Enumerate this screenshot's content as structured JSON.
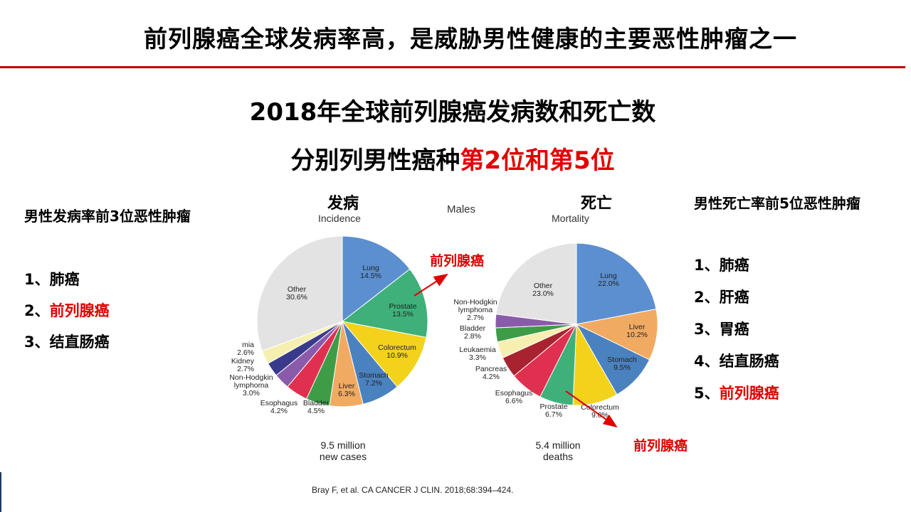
{
  "title": "前列腺癌全球发病率高，是威胁男性健康的主要恶性肿瘤之一",
  "headline": {
    "line1": "2018年全球前列腺癌发病数和死亡数",
    "line2_prefix": "分别列男性癌种",
    "line2_highlight": "第2位和第5位"
  },
  "left_panel": {
    "title": "男性发病率前3位恶性肿瘤",
    "items": [
      "1、肺癌",
      "2、",
      "3、结直肠癌"
    ],
    "highlight": "前列腺癌"
  },
  "right_panel": {
    "title": "男性死亡率前5位恶性肿瘤",
    "items": [
      "1、肺癌",
      "2、肝癌",
      "3、胃癌",
      "4、结直肠癌",
      "5、"
    ],
    "highlight": "前列腺癌"
  },
  "charts": {
    "center_label": "Males",
    "incidence": {
      "title_cn": "发病",
      "title_en": "Incidence",
      "caption_1": "9.5 million",
      "caption_2": "new cases"
    },
    "mortality": {
      "title_cn": "死亡",
      "title_en": "Mortality",
      "caption_1": "5.4 million",
      "caption_2": "deaths"
    }
  },
  "annotations": {
    "incidence_arrow_label": "前列腺癌",
    "mortality_arrow_label": "前列腺癌"
  },
  "citation": "Bray F, et al. CA CANCER J CLIN. 2018;68:394–424.",
  "colors": {
    "accent_red": "#c00000",
    "highlight_red": "#e00000"
  },
  "chart_data": [
    {
      "type": "pie",
      "title": "Incidence",
      "total_label": "9.5 million new cases",
      "slices": [
        {
          "label": "Lung",
          "value": 14.5,
          "color": "#5b8fcf"
        },
        {
          "label": "Prostate",
          "value": 13.5,
          "color": "#3fb07a"
        },
        {
          "label": "Colorectum",
          "value": 10.9,
          "color": "#f2d21b"
        },
        {
          "label": "Stomach",
          "value": 7.2,
          "color": "#4a82c0"
        },
        {
          "label": "Liver",
          "value": 6.3,
          "color": "#f1aa62"
        },
        {
          "label": "Bladder",
          "value": 4.5,
          "color": "#3e9c47"
        },
        {
          "label": "Esophagus",
          "value": 4.2,
          "color": "#e0304f"
        },
        {
          "label": "Non-Hodgkin lymphoma",
          "value": 3.0,
          "color": "#8b5bab"
        },
        {
          "label": "Kidney",
          "value": 2.7,
          "color": "#3a3a8c"
        },
        {
          "label": "mia",
          "value": 2.6,
          "color": "#f6efb0"
        },
        {
          "label": "Other",
          "value": 30.6,
          "color": "#e3e3e3"
        }
      ]
    },
    {
      "type": "pie",
      "title": "Mortality",
      "total_label": "5.4 million deaths",
      "slices": [
        {
          "label": "Lung",
          "value": 22.0,
          "color": "#5b8fcf"
        },
        {
          "label": "Liver",
          "value": 10.2,
          "color": "#f1aa62"
        },
        {
          "label": "Stomach",
          "value": 9.5,
          "color": "#4a82c0"
        },
        {
          "label": "Colorectum",
          "value": 9.0,
          "color": "#f2d21b"
        },
        {
          "label": "Prostate",
          "value": 6.7,
          "color": "#3fb07a"
        },
        {
          "label": "Esophagus",
          "value": 6.6,
          "color": "#e0304f"
        },
        {
          "label": "Pancreas",
          "value": 4.2,
          "color": "#a8232f"
        },
        {
          "label": "Leukaemia",
          "value": 3.3,
          "color": "#f6efb0"
        },
        {
          "label": "Bladder",
          "value": 2.8,
          "color": "#3e9c47"
        },
        {
          "label": "Non-Hodgkin lymphoma",
          "value": 2.7,
          "color": "#8b5bab"
        },
        {
          "label": "Other",
          "value": 23.0,
          "color": "#e3e3e3"
        }
      ]
    }
  ]
}
